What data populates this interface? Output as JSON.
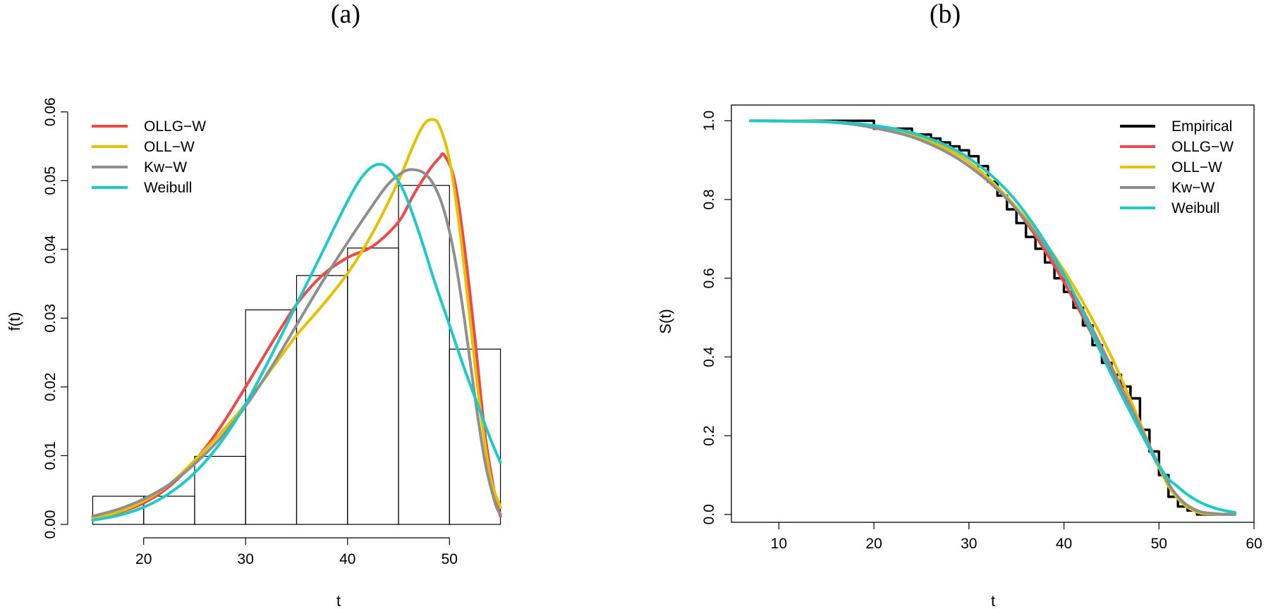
{
  "chart_data": [
    {
      "panel": "(a)",
      "type": "histogram-with-densities",
      "title": "(a)",
      "xlabel": "t",
      "ylabel": "f(t)",
      "xlim": [
        14,
        56
      ],
      "ylim": [
        0,
        0.061
      ],
      "xticks": [
        20,
        30,
        40,
        50
      ],
      "yticks": [
        0.0,
        0.01,
        0.02,
        0.03,
        0.04,
        0.05,
        0.06
      ],
      "ytick_labels": [
        "0.00",
        "0.01",
        "0.02",
        "0.03",
        "0.04",
        "0.05",
        "0.06"
      ],
      "legend_position": "top-left",
      "histogram": {
        "bins": [
          [
            15,
            20
          ],
          [
            20,
            25
          ],
          [
            25,
            30
          ],
          [
            30,
            35
          ],
          [
            35,
            40
          ],
          [
            40,
            45
          ],
          [
            45,
            50
          ],
          [
            50,
            55
          ]
        ],
        "density": [
          0.0041,
          0.0041,
          0.0099,
          0.0312,
          0.0362,
          0.0402,
          0.0493,
          0.0255
        ]
      },
      "series": [
        {
          "name": "OLLG−W",
          "color": "#ef4848",
          "x": [
            15,
            17.5,
            20,
            22.5,
            25,
            27.5,
            30,
            32.5,
            35,
            37.5,
            40,
            42.5,
            45,
            46.5,
            48,
            49,
            49.5,
            50.5,
            51.5,
            52.5,
            53.5,
            54.5,
            55
          ],
          "y": [
            0.0009,
            0.0017,
            0.0031,
            0.0055,
            0.0092,
            0.0141,
            0.02,
            0.0262,
            0.032,
            0.0362,
            0.0388,
            0.0405,
            0.044,
            0.048,
            0.0515,
            0.0533,
            0.0537,
            0.05,
            0.04,
            0.027,
            0.013,
            0.004,
            0.0012
          ]
        },
        {
          "name": "OLL−W",
          "color": "#e5c100",
          "x": [
            15,
            17.5,
            20,
            22.5,
            25,
            27.5,
            30,
            32.5,
            35,
            37.5,
            40,
            42.5,
            45,
            46.5,
            47.5,
            48.3,
            49,
            50,
            51,
            52,
            53,
            54,
            55
          ],
          "y": [
            0.0009,
            0.0018,
            0.0034,
            0.0058,
            0.0093,
            0.0132,
            0.0175,
            0.0225,
            0.0275,
            0.0318,
            0.0365,
            0.0425,
            0.05,
            0.0553,
            0.0582,
            0.0589,
            0.058,
            0.053,
            0.043,
            0.03,
            0.017,
            0.007,
            0.0025
          ]
        },
        {
          "name": "Kw−W",
          "color": "#8f8f8f",
          "x": [
            15,
            17.5,
            20,
            22.5,
            25,
            27.5,
            30,
            32.5,
            35,
            37.5,
            40,
            42.5,
            44,
            45.5,
            46.5,
            47.5,
            48.5,
            49.5,
            50.5,
            51.5,
            52.5,
            53.5,
            54.5,
            55
          ],
          "y": [
            0.0012,
            0.0022,
            0.0037,
            0.0058,
            0.0088,
            0.0125,
            0.0172,
            0.0228,
            0.029,
            0.0352,
            0.041,
            0.0465,
            0.0495,
            0.0513,
            0.0516,
            0.0511,
            0.0493,
            0.0455,
            0.039,
            0.0295,
            0.0185,
            0.009,
            0.003,
            0.0015
          ]
        },
        {
          "name": "Weibull",
          "color": "#1ccac9",
          "x": [
            15,
            17.5,
            20,
            22.5,
            25,
            27.5,
            30,
            32.5,
            35,
            37.5,
            40,
            41.5,
            42.8,
            44,
            45.5,
            47,
            48.5,
            50,
            51.5,
            53,
            54,
            55
          ],
          "y": [
            0.0006,
            0.0013,
            0.0025,
            0.0045,
            0.0075,
            0.0118,
            0.0175,
            0.0245,
            0.032,
            0.0395,
            0.047,
            0.0507,
            0.0523,
            0.0518,
            0.0485,
            0.0425,
            0.0355,
            0.029,
            0.0225,
            0.0165,
            0.0125,
            0.009
          ]
        }
      ]
    },
    {
      "panel": "(b)",
      "type": "line",
      "title": "(b)",
      "xlabel": "t",
      "ylabel": "S(t)",
      "xlim": [
        5,
        60
      ],
      "ylim": [
        -0.02,
        1.04
      ],
      "xticks": [
        10,
        20,
        30,
        40,
        50,
        60
      ],
      "yticks": [
        0.0,
        0.2,
        0.4,
        0.6,
        0.8,
        1.0
      ],
      "ytick_labels": [
        "0.0",
        "0.2",
        "0.4",
        "0.6",
        "0.8",
        "1.0"
      ],
      "legend_position": "top-right",
      "series": [
        {
          "name": "Empirical",
          "color": "#000000",
          "step": true,
          "x": [
            7,
            18,
            20,
            22,
            24,
            26,
            27,
            28,
            29,
            30,
            31,
            32,
            33,
            34,
            35,
            36,
            37,
            38,
            39,
            40,
            41,
            42,
            43,
            44,
            45,
            46,
            47,
            48,
            49,
            50,
            51,
            52,
            53,
            54,
            58
          ],
          "y": [
            1.0,
            1.0,
            0.98,
            0.98,
            0.965,
            0.955,
            0.945,
            0.935,
            0.925,
            0.91,
            0.885,
            0.845,
            0.81,
            0.775,
            0.74,
            0.705,
            0.675,
            0.64,
            0.6,
            0.565,
            0.525,
            0.48,
            0.43,
            0.385,
            0.355,
            0.325,
            0.295,
            0.215,
            0.16,
            0.1,
            0.045,
            0.02,
            0.01,
            0.0,
            0.0
          ]
        },
        {
          "name": "OLLG−W",
          "color": "#ef4848",
          "x": [
            7,
            15,
            20,
            25,
            30,
            35,
            40,
            45,
            50,
            52,
            54,
            56,
            58
          ],
          "y": [
            1.0,
            0.998,
            0.985,
            0.955,
            0.895,
            0.775,
            0.59,
            0.36,
            0.12,
            0.045,
            0.008,
            0.001,
            0.0
          ]
        },
        {
          "name": "OLL−W",
          "color": "#e5c100",
          "x": [
            7,
            15,
            20,
            25,
            30,
            35,
            40,
            45,
            50,
            52,
            54,
            56,
            58
          ],
          "y": [
            1.0,
            0.998,
            0.985,
            0.955,
            0.895,
            0.78,
            0.62,
            0.4,
            0.12,
            0.04,
            0.006,
            0.001,
            0.0
          ]
        },
        {
          "name": "Kw−W",
          "color": "#8f8f8f",
          "x": [
            7,
            15,
            20,
            25,
            30,
            35,
            40,
            45,
            50,
            52,
            54,
            56,
            58
          ],
          "y": [
            1.0,
            0.997,
            0.982,
            0.95,
            0.885,
            0.775,
            0.605,
            0.375,
            0.125,
            0.045,
            0.01,
            0.002,
            0.0
          ]
        },
        {
          "name": "Weibull",
          "color": "#1ccac9",
          "x": [
            7,
            15,
            20,
            25,
            30,
            35,
            40,
            45,
            50,
            52,
            54,
            56,
            58
          ],
          "y": [
            1.0,
            0.997,
            0.988,
            0.962,
            0.905,
            0.795,
            0.61,
            0.355,
            0.125,
            0.07,
            0.035,
            0.015,
            0.005
          ]
        }
      ]
    }
  ]
}
